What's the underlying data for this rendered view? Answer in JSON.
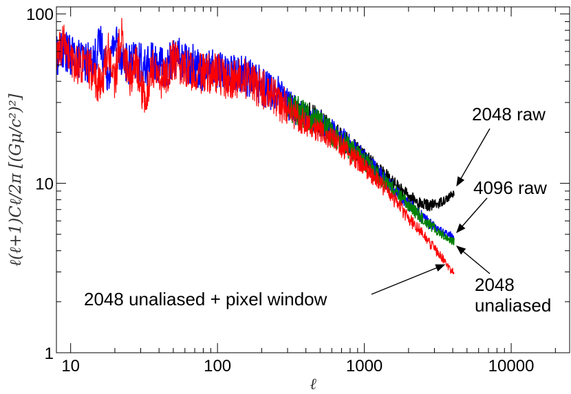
{
  "chart_data": {
    "type": "line",
    "title": "",
    "xlabel": "ℓ",
    "ylabel": "ℓ(ℓ+1)Cℓ/2π [(Gμ/c²)²]",
    "xscale": "log",
    "yscale": "log",
    "xlim": [
      8,
      25000
    ],
    "ylim": [
      1,
      110
    ],
    "x_ticks": [
      {
        "value": 10,
        "label": "10"
      },
      {
        "value": 100,
        "label": "100"
      },
      {
        "value": 1000,
        "label": "1000"
      },
      {
        "value": 10000,
        "label": "10000"
      }
    ],
    "y_ticks": [
      {
        "value": 1,
        "label": "1"
      },
      {
        "value": 10,
        "label": "10"
      },
      {
        "value": 100,
        "label": "100"
      }
    ],
    "grid": false,
    "legend": "none",
    "series": [
      {
        "name": "2048 raw",
        "color": "#000000",
        "x": [
          300,
          500,
          800,
          1000,
          1300,
          1600,
          2000,
          2400,
          2800,
          3200,
          3600,
          4096
        ],
        "y": [
          29,
          23,
          16.5,
          14,
          11.5,
          9.8,
          8.3,
          7.6,
          7.4,
          7.6,
          8.1,
          8.7
        ]
      },
      {
        "name": "4096 raw",
        "color": "#0000ff",
        "x": [
          8,
          9,
          10,
          12,
          14,
          16,
          18,
          20,
          22,
          25,
          28,
          32,
          36,
          40,
          45,
          50,
          60,
          70,
          80,
          100,
          120,
          150,
          200,
          250,
          300,
          400,
          500,
          700,
          1000,
          1300,
          1600,
          2000,
          2500,
          3000,
          3500,
          4096
        ],
        "y": [
          56,
          62,
          56,
          54,
          50,
          68,
          44,
          72,
          58,
          50,
          54,
          48,
          52,
          50,
          46,
          58,
          52,
          50,
          46,
          48,
          44,
          44,
          38,
          34,
          29,
          25,
          22.5,
          18.5,
          14,
          11,
          9.2,
          7.6,
          6.3,
          5.5,
          5.1,
          4.8
        ]
      },
      {
        "name": "2048 unaliased",
        "color": "#008000",
        "x": [
          300,
          500,
          800,
          1000,
          1300,
          1600,
          2000,
          2400,
          2800,
          3200,
          3600,
          4096
        ],
        "y": [
          29,
          22.5,
          16,
          13.5,
          10.8,
          9.0,
          7.4,
          6.4,
          5.7,
          5.2,
          4.8,
          4.5
        ]
      },
      {
        "name": "2048 unaliased + pixel window",
        "color": "#ff0000",
        "x": [
          8,
          9,
          10,
          12,
          14,
          16,
          18,
          20,
          22,
          25,
          28,
          32,
          36,
          40,
          45,
          50,
          60,
          70,
          80,
          100,
          120,
          150,
          200,
          250,
          300,
          400,
          500,
          700,
          1000,
          1300,
          1600,
          2000,
          2500,
          3000,
          3500,
          4096
        ],
        "y": [
          52,
          70,
          52,
          50,
          46,
          36,
          62,
          40,
          76,
          42,
          50,
          30,
          50,
          40,
          44,
          54,
          48,
          46,
          44,
          45,
          40,
          42,
          36,
          32,
          27,
          23,
          20.5,
          16.5,
          12.5,
          9.8,
          8.0,
          6.3,
          5.0,
          4.1,
          3.5,
          2.9
        ]
      }
    ],
    "annotations": [
      {
        "text": "2048 raw",
        "target_x": 4096,
        "target_y": 8.7
      },
      {
        "text": "4096 raw",
        "target_x": 4096,
        "target_y": 5.0
      },
      {
        "text": "2048 unaliased",
        "target_x": 4096,
        "target_y": 4.5
      },
      {
        "text": "2048 unaliased + pixel window",
        "target_x": 3600,
        "target_y": 3.5
      }
    ]
  },
  "labels": {
    "annot_2048_raw": "2048 raw",
    "annot_4096_raw": "4096 raw",
    "annot_unaliased_1": "2048",
    "annot_unaliased_2": "unaliased",
    "annot_pixel_window": "2048 unaliased + pixel window"
  }
}
